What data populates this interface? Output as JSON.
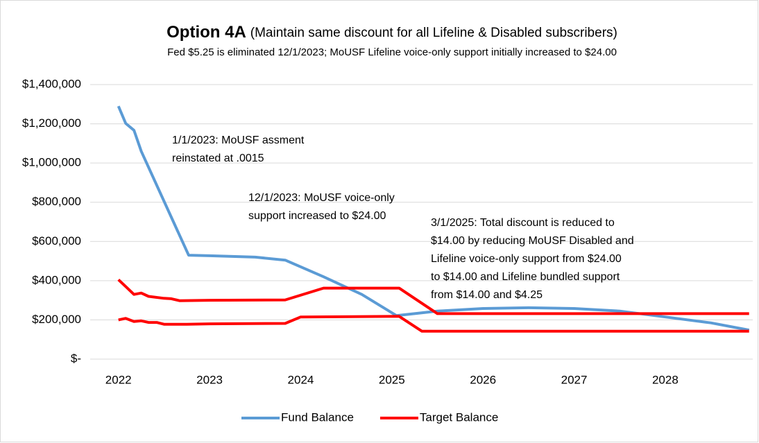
{
  "chart_data": {
    "type": "line",
    "title": "Option 4A",
    "title_note": "(Maintain same discount for all Lifeline & Disabled subscribers)",
    "subtitle": "Fed $5.25 is eliminated 12/1/2023; MoUSF Lifeline voice-only support initially increased to $24.00",
    "annotations": [
      {
        "lines": [
          "1/1/2023: MoUSF assment",
          "reinstated at .0015"
        ]
      },
      {
        "lines": [
          "12/1/2023: MoUSF voice-only",
          "support increased to $24.00"
        ]
      },
      {
        "lines": [
          "3/1/2025: Total discount is reduced to",
          "$14.00 by reducing MoUSF Disabled and",
          "Lifeline voice-only support from $24.00",
          "to $14.00 and Lifeline bundled support",
          "from $14.00 and $4.25"
        ]
      }
    ],
    "xlim": [
      2021.69,
      2028.96
    ],
    "xticks": [
      2022,
      2023,
      2024,
      2025,
      2026,
      2027,
      2028
    ],
    "ylim": [
      0,
      1400000
    ],
    "yticks": [
      {
        "value": 0,
        "label": "$-"
      },
      {
        "value": 200000,
        "label": "$200,000"
      },
      {
        "value": 400000,
        "label": "$400,000"
      },
      {
        "value": 600000,
        "label": "$600,000"
      },
      {
        "value": 800000,
        "label": "$800,000"
      },
      {
        "value": 1000000,
        "label": "$1,000,000"
      },
      {
        "value": 1200000,
        "label": "$1,200,000"
      },
      {
        "value": 1400000,
        "label": "$1,400,000"
      }
    ],
    "grid": true,
    "legend": "bottom",
    "series": [
      {
        "name": "Fund Balance",
        "color": "#5b9bd5",
        "x": [
          2022.0,
          2022.08,
          2022.17,
          2022.25,
          2022.77,
          2023.0,
          2023.5,
          2023.83,
          2024.25,
          2024.67,
          2025.05,
          2025.5,
          2026.0,
          2026.5,
          2027.0,
          2027.5,
          2028.0,
          2028.5,
          2028.92
        ],
        "values": [
          1290000,
          1202000,
          1167000,
          1060000,
          530000,
          527000,
          520000,
          505000,
          420000,
          330000,
          222000,
          245000,
          258000,
          262000,
          258000,
          245000,
          215000,
          185000,
          148000
        ]
      },
      {
        "name": "Target Balance",
        "color": "#ff0000",
        "x": [
          2022.0,
          2022.08,
          2022.17,
          2022.25,
          2022.33,
          2022.5,
          2022.58,
          2022.67,
          2023.0,
          2023.83,
          2024.25,
          2025.08,
          2025.5,
          2028.92
        ],
        "values": [
          405000,
          370000,
          330000,
          337000,
          320000,
          310000,
          308000,
          298000,
          300000,
          302000,
          362000,
          362000,
          232000,
          232000
        ]
      },
      {
        "color": "#ff0000",
        "x": [
          2022.0,
          2022.08,
          2022.17,
          2022.25,
          2022.33,
          2022.42,
          2022.5,
          2022.75,
          2023.0,
          2023.83,
          2024.0,
          2025.08,
          2025.33,
          2028.92
        ],
        "values": [
          200000,
          208000,
          192000,
          195000,
          187000,
          187000,
          178000,
          178000,
          180000,
          182000,
          215000,
          218000,
          142000,
          142000
        ]
      }
    ]
  }
}
